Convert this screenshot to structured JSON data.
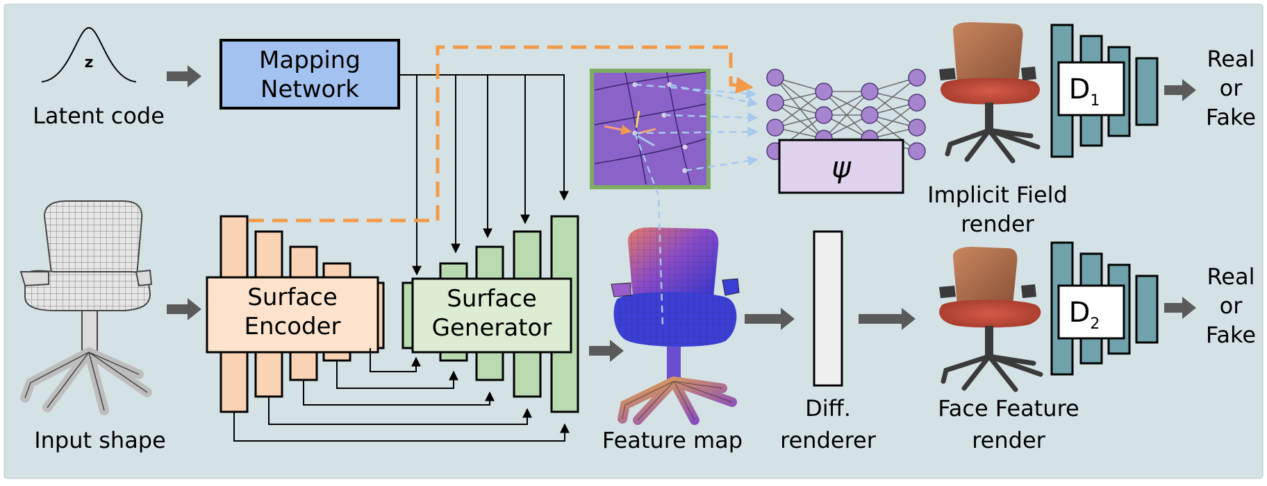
{
  "colors": {
    "background": "#d5e2e5",
    "encoder": "#fad2b4",
    "encoder_label_box": "#fde3cd",
    "generator": "#b9dab0",
    "generator_label_box": "#dcedd4",
    "mapping": "#a4c2f0",
    "discriminator": "#6fa2ab",
    "discriminator_label_box": "#ffffff",
    "psi_box": "#e0d3ee",
    "neuron": "#a784cf",
    "feature_frame": "#7eac62",
    "feature_patch": "#8b63c8",
    "orange_dash": "#f29a4a",
    "blue_dash": "#a8c8ee",
    "grey_arrow": "#5a5a5a"
  },
  "latent": {
    "symbol": "z",
    "caption": "Latent code"
  },
  "mapping": {
    "line1": "Mapping",
    "line2": "Network"
  },
  "input_shape": {
    "caption": "Input shape"
  },
  "surface_encoder": {
    "line1": "Surface",
    "line2": "Encoder"
  },
  "surface_generator": {
    "line1": "Surface",
    "line2": "Generator"
  },
  "feature_map": {
    "caption": "Feature map"
  },
  "implicit_field": {
    "symbol": "ψ",
    "caption_line1": "Implicit Field",
    "caption_line2": "render"
  },
  "diff_renderer": {
    "caption_line1": "Diff.",
    "caption_line2": "renderer"
  },
  "face_feature": {
    "caption_line1": "Face Feature",
    "caption_line2": "render"
  },
  "discriminator1": {
    "letter": "D",
    "subscript": "1",
    "out_line1": "Real",
    "out_line2": "or",
    "out_line3": "Fake"
  },
  "discriminator2": {
    "letter": "D",
    "subscript": "2",
    "out_line1": "Real",
    "out_line2": "or",
    "out_line3": "Fake"
  }
}
